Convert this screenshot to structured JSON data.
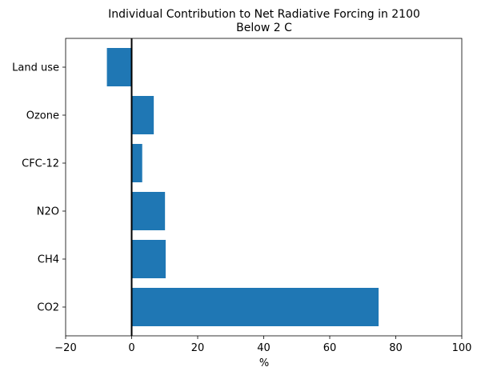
{
  "chart_data": {
    "type": "bar",
    "orientation": "horizontal",
    "title": "Individual Contribution to Net Radiative Forcing in 2100",
    "subtitle": "Below 2 C",
    "xlabel": "%",
    "ylabel": "",
    "xlim": [
      -20,
      100
    ],
    "xticks": [
      -20,
      0,
      20,
      40,
      60,
      80,
      100
    ],
    "categories": [
      "CO2",
      "CH4",
      "N2O",
      "CFC-12",
      "Ozone",
      "Land use"
    ],
    "values": [
      74.8,
      10.3,
      10.1,
      3.2,
      6.7,
      -7.5
    ],
    "bar_color": "#1f77b4",
    "zero_line_color": "#000000",
    "grid": false,
    "legend": "none"
  }
}
